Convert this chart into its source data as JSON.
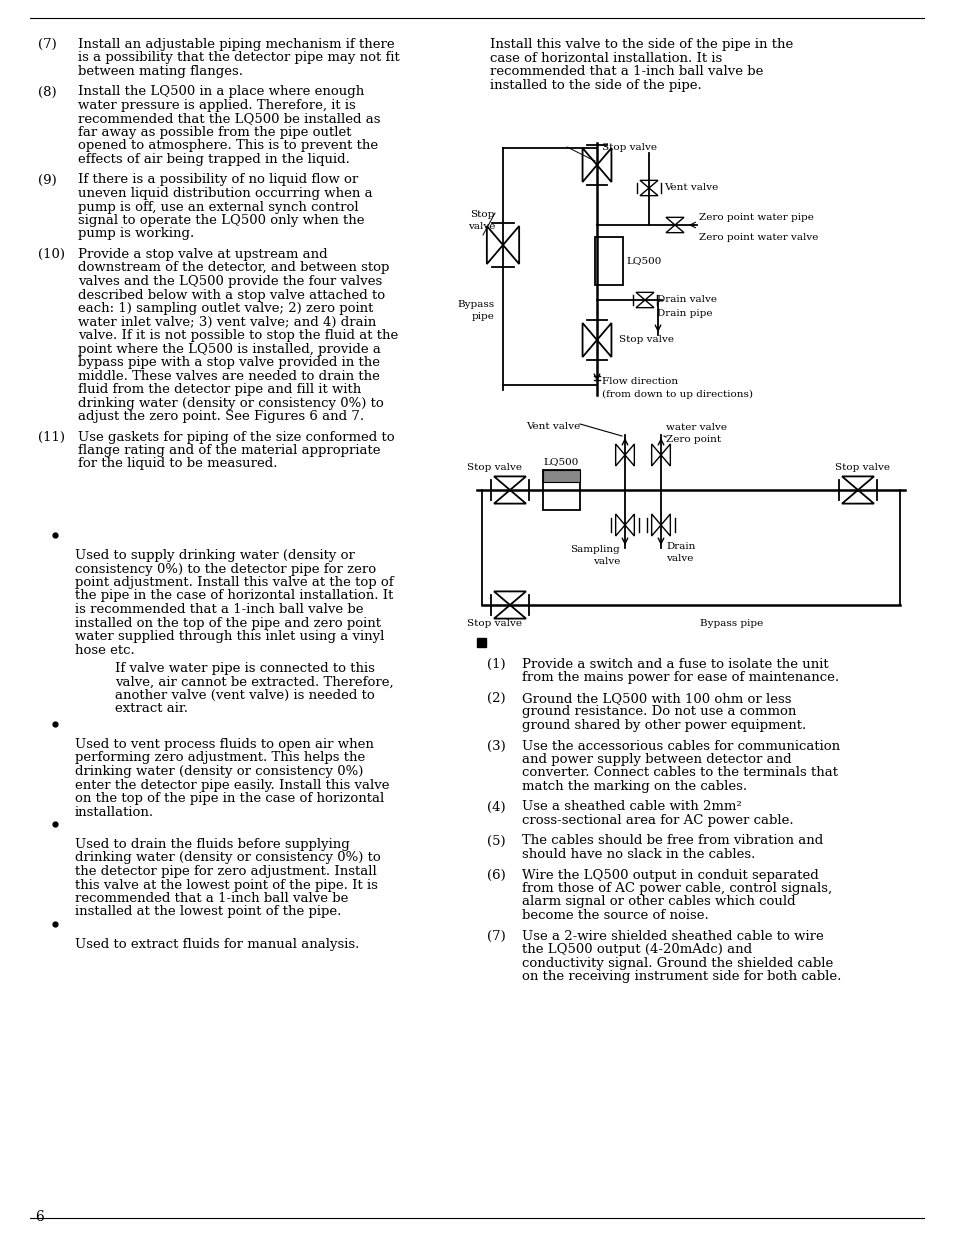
{
  "page_number": "6",
  "bg_color": "#ffffff",
  "text_color": "#000000",
  "font_size_body": 9.5,
  "left_col_items": [
    {
      "num": "(7)",
      "text": "Install an adjustable piping mechanism if there\nis a possibility that the detector pipe may not fit\nbetween mating flanges."
    },
    {
      "num": "(8)",
      "text": "Install the LQ500 in a place where enough\nwater pressure is applied. Therefore, it is\nrecommended that the LQ500 be installed as\nfar away as possible from the pipe outlet\nopened to atmosphere. This is to prevent the\neffects of air being trapped in the liquid."
    },
    {
      "num": "(9)",
      "text": "If there is a possibility of no liquid flow or\nuneven liquid distribution occurring when a\npump is off, use an external synch control\nsignal to operate the LQ500 only when the\npump is working."
    },
    {
      "num": "(10)",
      "text": "Provide a stop valve at upstream and\ndownstream of the detector, and between stop\nvalves and the LQ500 provide the four valves\ndescribed below with a stop valve attached to\neach: 1) sampling outlet valve; 2) zero point\nwater inlet valve; 3) vent valve; and 4) drain\nvalve. If it is not possible to stop the fluid at the\npoint where the LQ500 is installed, provide a\nbypass pipe with a stop valve provided in the\nmiddle. These valves are needed to drain the\nfluid from the detector pipe and fill it with\ndrinking water (density or consistency 0%) to\nadjust the zero point. See Figures 6 and 7."
    },
    {
      "num": "(11)",
      "text": "Use gaskets for piping of the size conformed to\nflange rating and of the material appropriate\nfor the liquid to be measured."
    }
  ],
  "right_top_text": "Install this valve to the side of the pipe in the\ncase of horizontal installation. It is\nrecommended that a 1-inch ball valve be\ninstalled to the side of the pipe.",
  "left_bullets": [
    {
      "main": "Used to supply drinking water (density or\nconsistency 0%) to the detector pipe for zero\npoint adjustment. Install this valve at the top of\nthe pipe in the case of horizontal installation. It\nis recommended that a 1-inch ball valve be\ninstalled on the top of the pipe and zero point\nwater supplied through this inlet using a vinyl\nhose etc.",
      "sub": "If valve water pipe is connected to this\nvalve, air cannot be extracted. Therefore,\nanother valve (vent valve) is needed to\nextract air."
    },
    {
      "main": "Used to vent process fluids to open air when\nperforming zero adjustment. This helps the\ndrinking water (density or consistency 0%)\nenter the detector pipe easily. Install this valve\non the top of the pipe in the case of horizontal\ninstallation.",
      "sub": ""
    },
    {
      "main": "Used to drain the fluids before supplying\ndrinking water (density or consistency 0%) to\nthe detector pipe for zero adjustment. Install\nthis valve at the lowest point of the pipe. It is\nrecommended that a 1-inch ball valve be\ninstalled at the lowest point of the pipe.",
      "sub": ""
    },
    {
      "main": "Used to extract fluids for manual analysis.",
      "sub": ""
    }
  ],
  "right_bottom_items": [
    {
      "num": "(1)",
      "text": "Provide a switch and a fuse to isolate the unit\nfrom the mains power for ease of maintenance."
    },
    {
      "num": "(2)",
      "text": "Ground the LQ500 with 100 ohm or less\nground resistance. Do not use a common\nground shared by other power equipment."
    },
    {
      "num": "(3)",
      "text": "Use the accessorious cables for communication\nand power supply between detector and\nconverter. Connect cables to the terminals that\nmatch the marking on the cables."
    },
    {
      "num": "(4)",
      "text": "Use a sheathed cable with 2mm²\ncross-sectional area for AC power cable."
    },
    {
      "num": "(5)",
      "text": "The cables should be free from vibration and\nshould have no slack in the cables."
    },
    {
      "num": "(6)",
      "text": "Wire the LQ500 output in conduit separated\nfrom those of AC power cable, control signals,\nalarm signal or other cables which could\nbecome the source of noise."
    },
    {
      "num": "(7)",
      "text": "Use a 2-wire shielded sheathed cable to wire\nthe LQ500 output (4-20mAdc) and\nconductivity signal. Ground the shielded cable\non the receiving instrument side for both cable."
    }
  ]
}
